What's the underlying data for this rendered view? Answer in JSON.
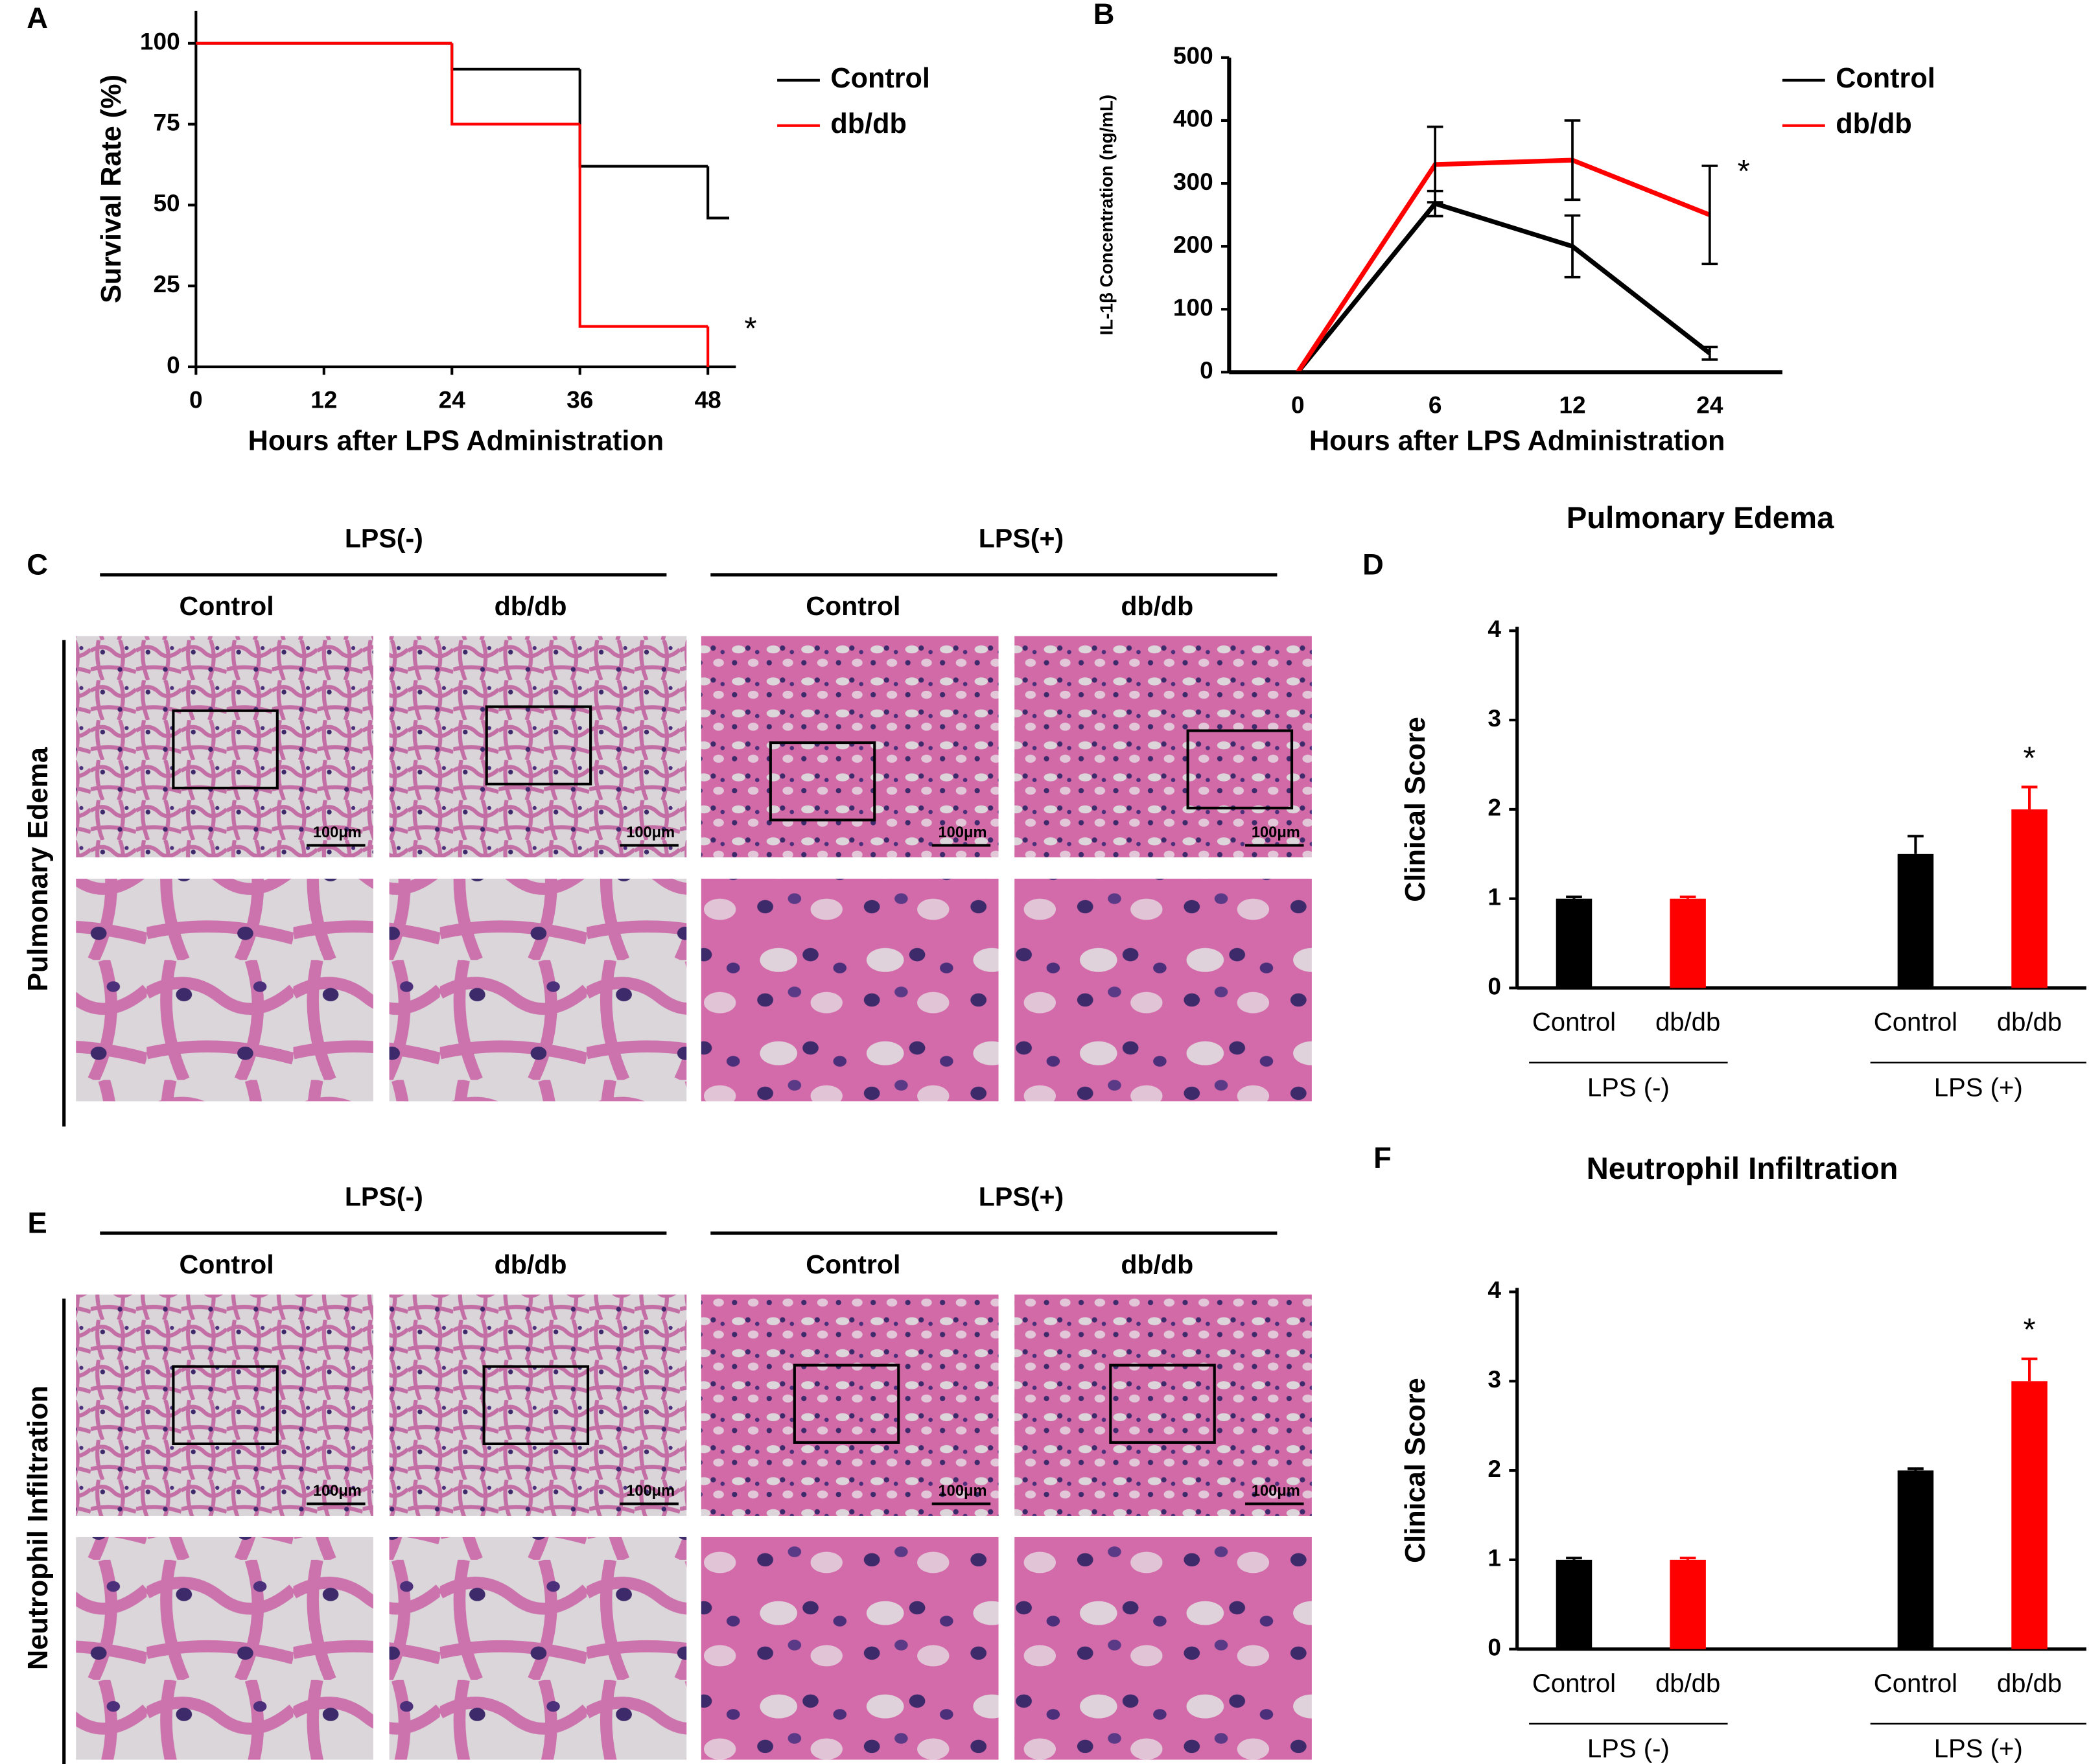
{
  "chart_data": [
    {
      "type": "step",
      "panel": "A",
      "ylabel": "Survival Rate (%)",
      "xlabel": "Hours after LPS Administration",
      "xlim": [
        0,
        50
      ],
      "xticks": [
        0,
        12,
        24,
        36,
        48
      ],
      "ylim": [
        0,
        110
      ],
      "yticks": [
        0,
        25,
        50,
        75,
        100
      ],
      "series": [
        {
          "name": "Control",
          "color": "#000000",
          "x": [
            0,
            24,
            36,
            48,
            50
          ],
          "values": [
            100,
            92,
            62,
            46,
            46
          ]
        },
        {
          "name": "db/db",
          "color": "#ff0000",
          "x": [
            0,
            24,
            36,
            48
          ],
          "values": [
            100,
            75,
            12.5,
            0
          ]
        }
      ],
      "annotation": "*"
    },
    {
      "type": "line",
      "panel": "B",
      "ylabel": "IL-1β Concentration (ng/mL)",
      "xlabel": "Hours after LPS Administration",
      "categories": [
        "0",
        "6",
        "12",
        "24"
      ],
      "ylim": [
        0,
        500
      ],
      "yticks": [
        0,
        100,
        200,
        300,
        400,
        500
      ],
      "series": [
        {
          "name": "Control",
          "color": "#000000",
          "values": [
            0,
            268,
            200,
            30
          ],
          "errors": [
            0,
            20,
            49,
            10
          ]
        },
        {
          "name": "db/db",
          "color": "#ff0000",
          "values": [
            0,
            330,
            337,
            250
          ],
          "errors": [
            0,
            60,
            63,
            78
          ]
        }
      ],
      "annotation": "*"
    },
    {
      "type": "bar",
      "panel": "D",
      "title": "Pulmonary Edema",
      "ylabel": "Clinical Score",
      "categories": [
        "Control",
        "db/db",
        "Control",
        "db/db"
      ],
      "groups": [
        "LPS (-)",
        "LPS (+)"
      ],
      "values": [
        1,
        1,
        1.5,
        2
      ],
      "errors": [
        0.02,
        0.02,
        0.2,
        0.25
      ],
      "colors": [
        "#000000",
        "#ff0000",
        "#000000",
        "#ff0000"
      ],
      "ylim": [
        0,
        4
      ],
      "yticks": [
        0,
        1,
        2,
        3,
        4
      ],
      "annotation": "*"
    },
    {
      "type": "bar",
      "panel": "F",
      "title": "Neutrophil Infiltration",
      "ylabel": "Clinical Score",
      "categories": [
        "Control",
        "db/db",
        "Control",
        "db/db"
      ],
      "groups": [
        "LPS (-)",
        "LPS (+)"
      ],
      "values": [
        1,
        1,
        2,
        3
      ],
      "errors": [
        0.02,
        0.02,
        0.02,
        0.25
      ],
      "colors": [
        "#000000",
        "#ff0000",
        "#000000",
        "#ff0000"
      ],
      "ylim": [
        0,
        4
      ],
      "yticks": [
        0,
        1,
        2,
        3,
        4
      ],
      "annotation": "*"
    }
  ],
  "image_panels": [
    {
      "panel": "C",
      "row_label": "Pulmonary Edema",
      "groups": [
        "LPS(-)",
        "LPS(+)"
      ],
      "columns": [
        "Control",
        "db/db",
        "Control",
        "db/db"
      ],
      "scale_bar": "100μm"
    },
    {
      "panel": "E",
      "row_label": "Neutrophil Infiltration",
      "groups": [
        "LPS(-)",
        "LPS(+)"
      ],
      "columns": [
        "Control",
        "db/db",
        "Control",
        "db/db"
      ],
      "scale_bar": "100μm"
    }
  ]
}
